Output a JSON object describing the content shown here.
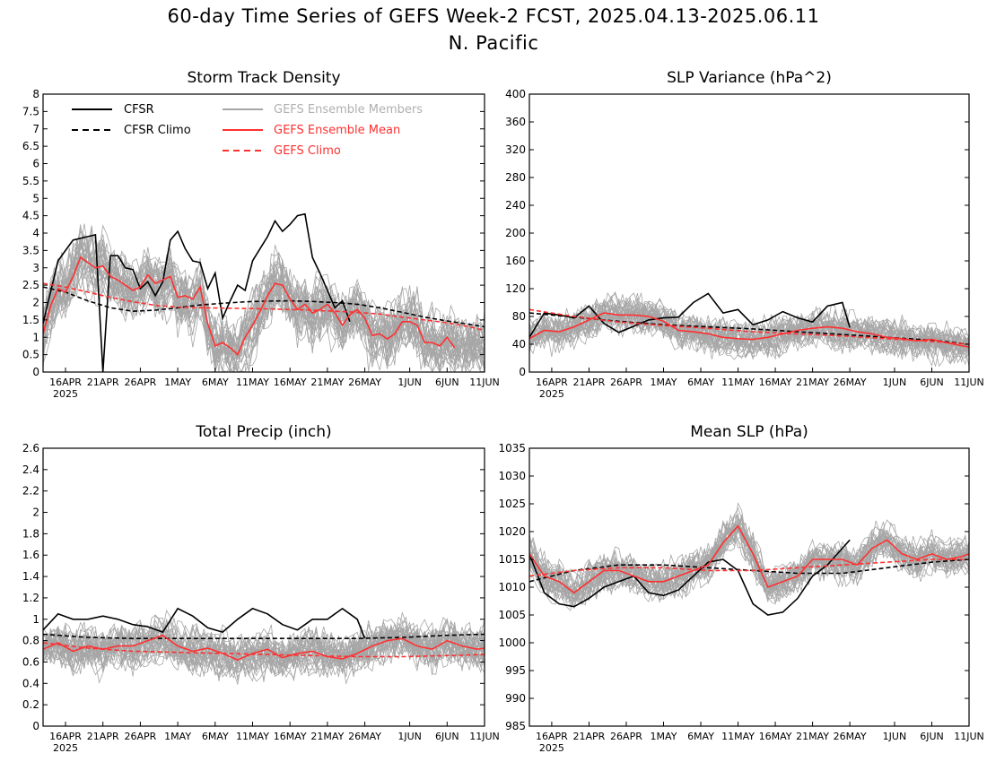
{
  "title_line1": "60-day Time Series of GEFS Week-2 FCST, 2025.04.13-2025.06.11",
  "title_line2": "N. Pacific",
  "colors": {
    "cfsr": "#000000",
    "cfsr_climo": "#000000",
    "members": "#a6a6a6",
    "ens_mean": "#ff3030",
    "gefs_climo": "#ff3030",
    "members_legend_text": "#b0b0b0"
  },
  "legend": {
    "cfsr": "CFSR",
    "cfsr_climo": "CFSR Climo",
    "members": "GEFS Ensemble Members",
    "ens_mean": "GEFS Ensemble Mean",
    "gefs_climo": "GEFS Climo"
  },
  "x_axis": {
    "tick_labels": [
      "16APR",
      "21APR",
      "26APR",
      "1MAY",
      "6MAY",
      "11MAY",
      "16MAY",
      "21MAY",
      "26MAY",
      "1JUN",
      "6JUN",
      "11JUN"
    ],
    "tick_days": [
      3,
      8,
      13,
      18,
      23,
      28,
      33,
      38,
      43,
      49,
      54,
      59
    ],
    "year_label": "2025",
    "xlim_days": [
      0,
      59
    ]
  },
  "chart_data": [
    {
      "type": "line",
      "title": "Storm Track Density",
      "ylim": [
        0,
        8
      ],
      "yticks": [
        "0",
        "0.5",
        "1",
        "1.5",
        "2",
        "2.5",
        "3",
        "3.5",
        "4",
        "4.5",
        "5",
        "5.5",
        "6",
        "6.5",
        "7",
        "7.5",
        "8"
      ],
      "ytick_values": [
        0,
        0.5,
        1,
        1.5,
        2,
        2.5,
        3,
        3.5,
        4,
        4.5,
        5,
        5.5,
        6,
        6.5,
        7,
        7.5,
        8
      ],
      "member_spread": {
        "count": 30,
        "base": "ensemble_mean",
        "amplitude": 1.2
      },
      "series": [
        {
          "name": "CFSR",
          "style": "solid",
          "color": "#000000",
          "x": [
            0,
            1,
            2,
            3,
            4,
            5,
            6,
            7,
            8,
            9,
            10,
            11,
            12,
            13,
            14,
            15,
            16,
            17,
            18,
            19,
            20,
            21,
            22,
            23,
            24,
            25,
            26,
            27,
            28,
            29,
            30,
            31,
            32,
            33,
            34,
            35,
            36,
            37,
            38,
            39,
            40,
            41,
            42,
            43
          ],
          "values": [
            1.4,
            2.3,
            3.2,
            3.5,
            3.8,
            3.85,
            3.9,
            3.95,
            0,
            3.35,
            3.35,
            3.0,
            2.95,
            2.4,
            2.6,
            2.2,
            2.6,
            3.8,
            4.05,
            3.55,
            3.2,
            3.15,
            2.4,
            2.85,
            1.55,
            2.05,
            2.5,
            2.35,
            3.2,
            3.55,
            3.9,
            4.35,
            4.05,
            4.25,
            4.5,
            4.55,
            3.3,
            2.85,
            2.35,
            1.85,
            2.05,
            1.45,
            null,
            null
          ]
        },
        {
          "name": "CFSR Climo",
          "style": "dashed",
          "color": "#000000",
          "x": [
            0,
            3,
            6,
            9,
            12,
            15,
            18,
            21,
            24,
            27,
            30,
            33,
            36,
            39,
            42,
            45,
            48,
            51,
            54,
            57,
            59
          ],
          "values": [
            2.45,
            2.3,
            2.05,
            1.85,
            1.75,
            1.78,
            1.85,
            1.93,
            1.98,
            2.02,
            2.04,
            2.05,
            2.03,
            2.0,
            1.95,
            1.85,
            1.72,
            1.58,
            1.47,
            1.37,
            1.3
          ]
        },
        {
          "name": "GEFS Ensemble Mean",
          "style": "solid",
          "color": "#ff3030",
          "x": [
            0,
            1,
            2,
            3,
            4,
            5,
            6,
            7,
            8,
            9,
            10,
            11,
            12,
            13,
            14,
            15,
            16,
            17,
            18,
            19,
            20,
            21,
            22,
            23,
            24,
            25,
            26,
            27,
            28,
            29,
            30,
            31,
            32,
            33,
            34,
            35,
            36,
            37,
            38,
            39,
            40,
            41,
            42,
            43,
            44,
            45,
            46,
            47,
            48,
            49,
            50,
            51,
            52,
            53,
            54,
            55,
            56,
            57,
            58,
            59
          ],
          "values": [
            1.1,
            1.9,
            2.4,
            2.3,
            2.75,
            3.3,
            3.15,
            3.0,
            3.05,
            2.75,
            2.65,
            2.5,
            2.35,
            2.45,
            2.8,
            2.55,
            2.65,
            2.75,
            2.15,
            2.2,
            2.1,
            2.45,
            1.4,
            0.75,
            0.85,
            0.7,
            0.5,
            1.0,
            1.35,
            1.75,
            2.2,
            2.55,
            2.5,
            2.1,
            1.8,
            1.95,
            1.7,
            1.8,
            1.95,
            1.7,
            1.35,
            1.65,
            1.8,
            1.55,
            1.05,
            1.1,
            0.95,
            1.1,
            1.45,
            1.45,
            1.35,
            0.85,
            0.85,
            0.75,
            1.0,
            0.7,
            null,
            null,
            null,
            null
          ]
        },
        {
          "name": "GEFS Climo",
          "style": "dashed",
          "color": "#ff3030",
          "x": [
            0,
            3,
            6,
            9,
            12,
            15,
            18,
            21,
            24,
            27,
            30,
            33,
            36,
            39,
            42,
            45,
            48,
            51,
            54,
            57,
            59
          ],
          "values": [
            2.55,
            2.45,
            2.3,
            2.15,
            2.02,
            1.92,
            1.87,
            1.85,
            1.84,
            1.83,
            1.82,
            1.8,
            1.78,
            1.75,
            1.72,
            1.67,
            1.58,
            1.5,
            1.42,
            1.3,
            1.2
          ]
        }
      ]
    },
    {
      "type": "line",
      "title": "SLP Variance (hPa^2)",
      "ylim": [
        0,
        400
      ],
      "yticks": [
        "0",
        "40",
        "80",
        "120",
        "160",
        "200",
        "240",
        "280",
        "320",
        "360",
        "400"
      ],
      "ytick_values": [
        0,
        40,
        80,
        120,
        160,
        200,
        240,
        280,
        320,
        360,
        400
      ],
      "member_spread": {
        "count": 30,
        "base": "ensemble_mean",
        "amplitude": 35
      },
      "series": [
        {
          "name": "CFSR",
          "style": "solid",
          "color": "#000000",
          "x": [
            0,
            2,
            4,
            6,
            8,
            10,
            12,
            14,
            16,
            18,
            20,
            22,
            24,
            26,
            28,
            30,
            32,
            34,
            36,
            38,
            40,
            42,
            43
          ],
          "values": [
            50,
            85,
            82,
            78,
            95,
            70,
            57,
            66,
            75,
            78,
            79,
            100,
            113,
            85,
            90,
            68,
            75,
            87,
            78,
            72,
            95,
            100,
            64
          ]
        },
        {
          "name": "CFSR Climo",
          "style": "dashed",
          "color": "#000000",
          "x": [
            0,
            6,
            12,
            18,
            24,
            30,
            36,
            42,
            48,
            54,
            59
          ],
          "values": [
            85,
            79,
            73,
            68,
            65,
            62,
            58,
            54,
            50,
            46,
            40
          ]
        },
        {
          "name": "GEFS Ensemble Mean",
          "style": "solid",
          "color": "#ff3030",
          "x": [
            0,
            2,
            4,
            6,
            8,
            10,
            12,
            14,
            16,
            18,
            20,
            22,
            24,
            26,
            28,
            30,
            32,
            34,
            36,
            38,
            40,
            42,
            44,
            46,
            48,
            50,
            52,
            54,
            56,
            58,
            59
          ],
          "values": [
            48,
            60,
            58,
            65,
            75,
            85,
            82,
            82,
            80,
            73,
            60,
            58,
            55,
            50,
            48,
            47,
            50,
            55,
            60,
            63,
            65,
            63,
            58,
            55,
            50,
            48,
            45,
            47,
            42,
            38,
            36
          ]
        },
        {
          "name": "GEFS Climo",
          "style": "dashed",
          "color": "#ff3030",
          "x": [
            0,
            6,
            12,
            18,
            24,
            30,
            36,
            42,
            48,
            54,
            59
          ],
          "values": [
            90,
            80,
            72,
            67,
            63,
            58,
            55,
            52,
            48,
            44,
            40
          ]
        }
      ]
    },
    {
      "type": "line",
      "title": "Total Precip (inch)",
      "ylim": [
        0,
        2.6
      ],
      "yticks": [
        "0",
        "0.2",
        "0.4",
        "0.6",
        "0.8",
        "1",
        "1.2",
        "1.4",
        "1.6",
        "1.8",
        "2",
        "2.2",
        "2.4",
        "2.6"
      ],
      "ytick_values": [
        0,
        0.2,
        0.4,
        0.6,
        0.8,
        1,
        1.2,
        1.4,
        1.6,
        1.8,
        2,
        2.2,
        2.4,
        2.6
      ],
      "member_spread": {
        "count": 30,
        "base": "ensemble_mean",
        "amplitude": 0.28
      },
      "series": [
        {
          "name": "CFSR",
          "style": "solid",
          "color": "#000000",
          "x": [
            0,
            2,
            4,
            6,
            8,
            10,
            12,
            14,
            16,
            18,
            20,
            22,
            24,
            26,
            28,
            30,
            32,
            34,
            36,
            38,
            40,
            42,
            43
          ],
          "values": [
            0.9,
            1.05,
            1.0,
            1.0,
            1.03,
            1.0,
            0.95,
            0.93,
            0.88,
            1.1,
            1.03,
            0.92,
            0.88,
            1.0,
            1.1,
            1.05,
            0.95,
            0.9,
            1.0,
            1.0,
            1.1,
            1.0,
            0.82
          ]
        },
        {
          "name": "CFSR Climo",
          "style": "dashed",
          "color": "#000000",
          "x": [
            0,
            6,
            12,
            18,
            24,
            30,
            36,
            42,
            48,
            54,
            59
          ],
          "values": [
            0.86,
            0.83,
            0.82,
            0.82,
            0.82,
            0.82,
            0.82,
            0.82,
            0.83,
            0.85,
            0.86
          ]
        },
        {
          "name": "GEFS Ensemble Mean",
          "style": "solid",
          "color": "#ff3030",
          "x": [
            0,
            2,
            4,
            6,
            8,
            10,
            12,
            14,
            16,
            18,
            20,
            22,
            24,
            26,
            28,
            30,
            32,
            34,
            36,
            38,
            40,
            42,
            44,
            46,
            48,
            50,
            52,
            54,
            56,
            58,
            59
          ],
          "values": [
            0.72,
            0.78,
            0.7,
            0.75,
            0.72,
            0.75,
            0.75,
            0.8,
            0.85,
            0.75,
            0.7,
            0.73,
            0.68,
            0.62,
            0.68,
            0.72,
            0.64,
            0.68,
            0.7,
            0.65,
            0.63,
            0.68,
            0.75,
            0.8,
            0.82,
            0.75,
            0.72,
            0.8,
            0.75,
            0.72,
            0.73
          ]
        },
        {
          "name": "GEFS Climo",
          "style": "dashed",
          "color": "#ff3030",
          "x": [
            0,
            6,
            12,
            18,
            24,
            30,
            36,
            42,
            48,
            54,
            59
          ],
          "values": [
            0.78,
            0.73,
            0.7,
            0.69,
            0.68,
            0.67,
            0.66,
            0.65,
            0.65,
            0.66,
            0.67
          ]
        }
      ]
    },
    {
      "type": "line",
      "title": "Mean SLP (hPa)",
      "ylim": [
        985,
        1035
      ],
      "yticks": [
        "985",
        "990",
        "995",
        "1000",
        "1005",
        "1010",
        "1015",
        "1020",
        "1025",
        "1030",
        "1035"
      ],
      "ytick_values": [
        985,
        990,
        995,
        1000,
        1005,
        1010,
        1015,
        1020,
        1025,
        1030,
        1035
      ],
      "member_spread": {
        "count": 30,
        "base": "ensemble_mean",
        "amplitude": 4.5
      },
      "series": [
        {
          "name": "CFSR",
          "style": "solid",
          "color": "#000000",
          "x": [
            0,
            2,
            4,
            6,
            8,
            10,
            12,
            14,
            16,
            18,
            20,
            22,
            24,
            26,
            28,
            30,
            32,
            34,
            36,
            38,
            40,
            42,
            43
          ],
          "values": [
            1016,
            1009,
            1007,
            1006.5,
            1008,
            1010,
            1011,
            1012,
            1009,
            1008.5,
            1009.5,
            1012,
            1014.5,
            1015,
            1013,
            1007,
            1005,
            1005.5,
            1008,
            1012,
            1014,
            1017,
            1018.5
          ]
        },
        {
          "name": "CFSR Climo",
          "style": "dashed",
          "color": "#000000",
          "x": [
            0,
            6,
            12,
            18,
            24,
            30,
            36,
            42,
            48,
            54,
            59
          ],
          "values": [
            1011,
            1013,
            1014,
            1014,
            1013.5,
            1013,
            1012.5,
            1012.5,
            1013.5,
            1014.5,
            1015
          ]
        },
        {
          "name": "GEFS Ensemble Mean",
          "style": "solid",
          "color": "#ff3030",
          "x": [
            0,
            2,
            4,
            6,
            8,
            10,
            12,
            14,
            16,
            18,
            20,
            22,
            24,
            26,
            28,
            30,
            32,
            34,
            36,
            38,
            40,
            42,
            44,
            46,
            48,
            50,
            52,
            54,
            56,
            58,
            59
          ],
          "values": [
            1016,
            1012,
            1011,
            1009,
            1011,
            1013,
            1013,
            1012,
            1011,
            1011,
            1012,
            1013,
            1014,
            1018,
            1021,
            1016,
            1010,
            1011,
            1012,
            1015,
            1015,
            1015,
            1014,
            1017,
            1018.5,
            1016,
            1015,
            1016,
            1015,
            1015.5,
            1016
          ]
        },
        {
          "name": "GEFS Climo",
          "style": "dashed",
          "color": "#ff3030",
          "x": [
            0,
            6,
            12,
            18,
            24,
            30,
            36,
            42,
            48,
            54,
            59
          ],
          "values": [
            1012,
            1013,
            1013.5,
            1013.5,
            1013,
            1013,
            1013.5,
            1014,
            1014.5,
            1015,
            1015
          ]
        }
      ]
    }
  ]
}
